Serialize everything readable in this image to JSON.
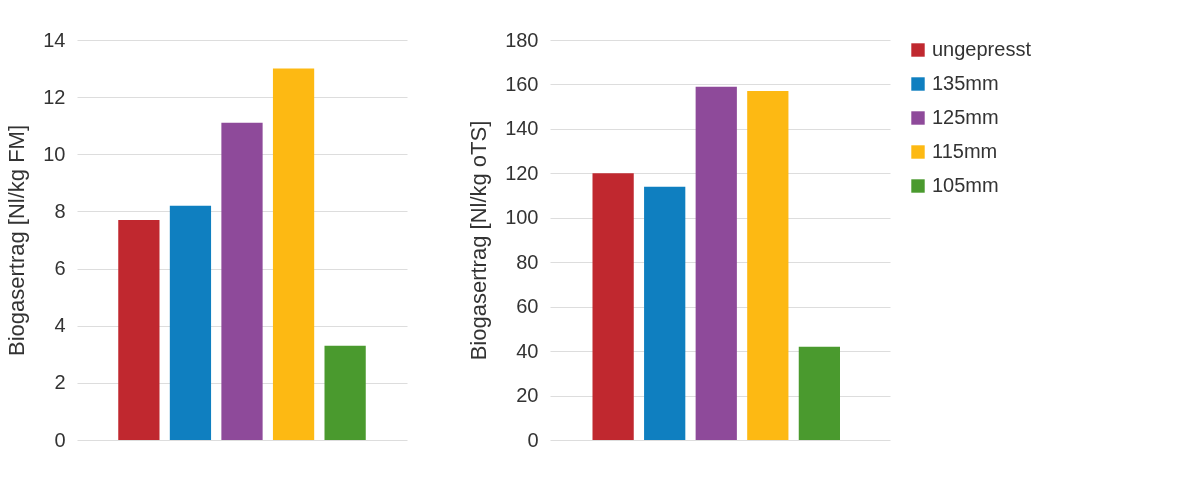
{
  "chart_data": [
    {
      "type": "bar",
      "ylabel": "Biogasertrag [Nl/kg FM]",
      "categories": [
        null
      ],
      "ylim": [
        0,
        14
      ],
      "yticks": [
        0,
        2,
        4,
        6,
        8,
        10,
        12,
        14
      ],
      "grid": "y",
      "legend": false,
      "series": [
        {
          "color": "#c0282f",
          "values": [
            7.7
          ]
        },
        {
          "color": "#0f7fc0",
          "values": [
            8.2
          ]
        },
        {
          "color": "#8e4a9a",
          "values": [
            11.1
          ]
        },
        {
          "color": "#fdb913",
          "values": [
            13.0
          ]
        },
        {
          "color": "#4a9a2e",
          "values": [
            3.3
          ]
        }
      ]
    },
    {
      "type": "bar",
      "ylabel": "Biogasertrag [Nl/kg oTS]",
      "categories": [
        null
      ],
      "ylim": [
        0,
        180
      ],
      "yticks": [
        0,
        20,
        40,
        60,
        80,
        100,
        120,
        140,
        160,
        180
      ],
      "grid": "y",
      "legend": "right",
      "series": [
        {
          "name": "ungepresst",
          "color": "#c0282f",
          "values": [
            120
          ]
        },
        {
          "name": "135mm",
          "color": "#0f7fc0",
          "values": [
            114
          ]
        },
        {
          "name": "125mm",
          "color": "#8e4a9a",
          "values": [
            159
          ]
        },
        {
          "name": "115mm",
          "color": "#fdb913",
          "values": [
            157
          ]
        },
        {
          "name": "105mm",
          "color": "#4a9a2e",
          "values": [
            42
          ]
        }
      ]
    }
  ]
}
